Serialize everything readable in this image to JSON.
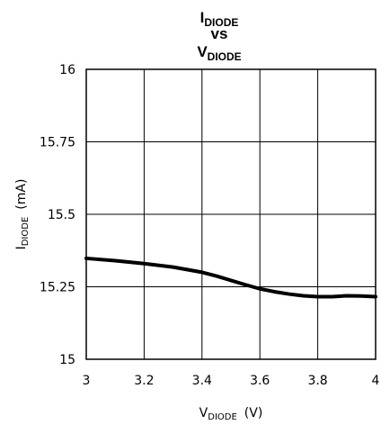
{
  "chart_data": {
    "type": "line",
    "title": {
      "line1_main": "I",
      "line1_sub": "DIODE",
      "line2": "vs",
      "line3_main": "V",
      "line3_sub": "DIODE"
    },
    "xlabel": {
      "main": "V",
      "sub": "DIODE",
      "unit": "(V)"
    },
    "ylabel": {
      "main": "I",
      "sub": "DIODE",
      "unit": "(mA)"
    },
    "xlim": [
      3,
      4
    ],
    "ylim": [
      15,
      16
    ],
    "xticks": [
      3,
      3.2,
      3.4,
      3.6,
      3.8,
      4
    ],
    "xtick_labels": [
      "3",
      "3.2",
      "3.4",
      "3.6",
      "3.8",
      "4"
    ],
    "yticks": [
      15,
      15.25,
      15.5,
      15.75,
      16
    ],
    "ytick_labels": [
      "15",
      "15.25",
      "15.5",
      "15.75",
      "16"
    ],
    "grid": true,
    "series": [
      {
        "x": [
          3.0,
          3.1,
          3.2,
          3.3,
          3.4,
          3.45,
          3.5,
          3.55,
          3.6,
          3.65,
          3.7,
          3.75,
          3.8,
          3.85,
          3.9,
          3.95,
          4.0
        ],
        "y": [
          15.348,
          15.34,
          15.33,
          15.318,
          15.3,
          15.287,
          15.272,
          15.257,
          15.243,
          15.233,
          15.225,
          15.219,
          15.216,
          15.216,
          15.219,
          15.218,
          15.216
        ]
      }
    ]
  }
}
